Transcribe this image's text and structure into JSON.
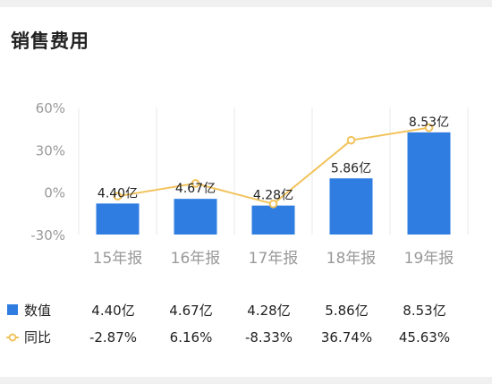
{
  "card": {
    "title": "销售费用"
  },
  "chart_data": {
    "type": "bar",
    "title": "销售费用",
    "categories": [
      "15年报",
      "16年报",
      "17年报",
      "18年报",
      "19年报"
    ],
    "series": [
      {
        "name": "数值",
        "type": "bar",
        "values": [
          4.4,
          4.67,
          4.28,
          5.86,
          8.53
        ],
        "value_labels": [
          "4.40亿",
          "4.67亿",
          "4.28亿",
          "5.86亿",
          "8.53亿"
        ]
      },
      {
        "name": "同比",
        "type": "line",
        "values": [
          -2.87,
          6.16,
          -8.33,
          36.74,
          45.63
        ],
        "value_labels": [
          "-2.87%",
          "6.16%",
          "-8.33%",
          "36.74%",
          "45.63%"
        ]
      }
    ],
    "y_ticks": [
      "60%",
      "30%",
      "0%",
      "-30%"
    ],
    "ylim_percent": [
      -30,
      60
    ],
    "colors": {
      "bar": "#2f7de1",
      "line": "#f2c35c",
      "axis_text": "#999999",
      "grid": "#e8e8e8"
    },
    "legend": "table-below"
  }
}
